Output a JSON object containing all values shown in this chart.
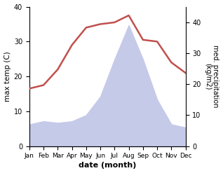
{
  "months": [
    "Jan",
    "Feb",
    "Mar",
    "Apr",
    "May",
    "Jun",
    "Jul",
    "Aug",
    "Sep",
    "Oct",
    "Nov",
    "Dec"
  ],
  "month_x": [
    1,
    2,
    3,
    4,
    5,
    6,
    7,
    8,
    9,
    10,
    11,
    12
  ],
  "temp": [
    16.5,
    17.5,
    22,
    29,
    34,
    35,
    35.5,
    37.5,
    30.5,
    30,
    24,
    21
  ],
  "precip": [
    7,
    8,
    7.5,
    8,
    10,
    16,
    28,
    39,
    28,
    15,
    7,
    6
  ],
  "temp_color": "#c0504d",
  "precip_fill_color": "#c5cae9",
  "xlabel": "date (month)",
  "ylabel_left": "max temp (C)",
  "ylabel_right": "med. precipitation\n(kg/m2)",
  "ylim_left": [
    0,
    40
  ],
  "ylim_right": [
    0,
    45
  ],
  "yticks_left": [
    0,
    10,
    20,
    30,
    40
  ],
  "yticks_right": [
    0,
    10,
    20,
    30,
    40
  ],
  "bg_color": "#ffffff"
}
